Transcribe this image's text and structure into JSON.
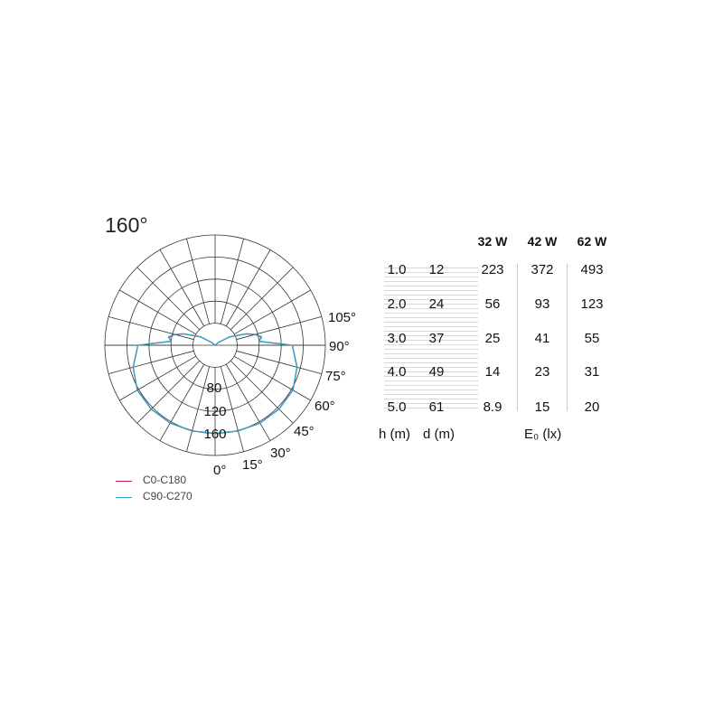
{
  "title": "160°",
  "polar": {
    "angle_labels": [
      "105°",
      "90°",
      "75°",
      "60°",
      "45°",
      "30°",
      "15°",
      "0°"
    ],
    "ring_labels": [
      "80",
      "120",
      "160"
    ],
    "rmax": 200,
    "angles": [
      0,
      15,
      30,
      45,
      60,
      75,
      90,
      95,
      100,
      105,
      110,
      120,
      130,
      135
    ],
    "series": [
      {
        "name": "C0-C180",
        "color": "#c8204a",
        "values": [
          160,
          161,
          163,
          164,
          163,
          154,
          140,
          80,
          85,
          75,
          60,
          30,
          8,
          0
        ]
      },
      {
        "name": "C90-C270",
        "color": "#2aa5c8",
        "values": [
          160,
          161,
          163,
          164,
          163,
          154,
          140,
          80,
          86,
          76,
          61,
          31,
          8,
          0
        ]
      }
    ]
  },
  "legend": [
    {
      "label": "C0-C180",
      "color": "#c8204a"
    },
    {
      "label": "C90-C270",
      "color": "#2aa5c8"
    }
  ],
  "table": {
    "headers": [
      "32 W",
      "42 W",
      "62 W"
    ],
    "rows": [
      {
        "h": "1.0",
        "d": "12",
        "v": [
          "223",
          "372",
          "493"
        ]
      },
      {
        "h": "2.0",
        "d": "24",
        "v": [
          "56",
          "93",
          "123"
        ]
      },
      {
        "h": "3.0",
        "d": "37",
        "v": [
          "25",
          "41",
          "55"
        ]
      },
      {
        "h": "4.0",
        "d": "49",
        "v": [
          "14",
          "23",
          "31"
        ]
      },
      {
        "h": "5.0",
        "d": "61",
        "v": [
          "8.9",
          "15",
          "20"
        ]
      }
    ],
    "footer": {
      "h": "h (m)",
      "d": "d (m)",
      "e": "E₀ (lx)"
    }
  }
}
